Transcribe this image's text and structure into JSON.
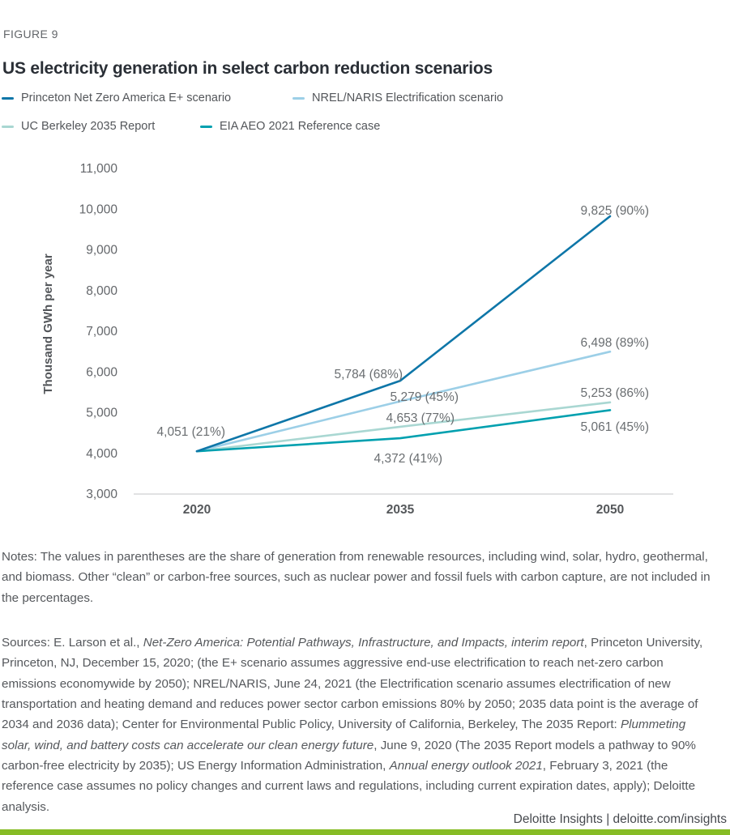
{
  "figure_label": "FIGURE 9",
  "title": "US electricity generation in select carbon reduction scenarios",
  "chart_data": {
    "type": "line",
    "x": [
      "2020",
      "2035",
      "2050"
    ],
    "xtick_labels": [
      "2020",
      "2035",
      "2050"
    ],
    "ylabel": "Thousand GWh per year",
    "ylim": [
      3000,
      11000
    ],
    "ytick_step": 1000,
    "ytick_labels": [
      "3,000",
      "4,000",
      "5,000",
      "6,000",
      "7,000",
      "8,000",
      "9,000",
      "10,000",
      "11,000"
    ],
    "grid": false,
    "legend_position": "top",
    "series": [
      {
        "name": "Princeton Net Zero America E+ scenario",
        "color": "#0E76A8",
        "values": [
          4051,
          5784,
          9825
        ],
        "point_labels": [
          "4,051 (21%)",
          "5,784 (68%)",
          "9,825 (90%)"
        ]
      },
      {
        "name": "NREL/NARIS Electrification scenario",
        "color": "#9CCFE7",
        "values": [
          4051,
          5279,
          6498
        ],
        "point_labels": [
          null,
          "5,279 (45%)",
          "6,498 (89%)"
        ]
      },
      {
        "name": "UC Berkeley 2035 Report",
        "color": "#A9D7D2",
        "values": [
          4051,
          4653,
          5253
        ],
        "point_labels": [
          null,
          "4,653 (77%)",
          "5,253 (86%)"
        ]
      },
      {
        "name": "EIA AEO 2021 Reference case",
        "color": "#00A0AF",
        "values": [
          4051,
          4372,
          5061
        ],
        "point_labels": [
          null,
          "4,372 (41%)",
          "5,061 (45%)"
        ]
      }
    ]
  },
  "notes": "Notes: The values in parentheses are the share of generation from renewable resources, including wind, solar, hydro, geothermal, and biomass. Other “clean” or carbon-free sources, such as nuclear power and fossil fuels with carbon capture, are not included in the percentages.",
  "sources_segments": [
    {
      "text": "Sources: E. Larson et al., ",
      "italic": false
    },
    {
      "text": "Net-Zero America: Potential Pathways, Infrastructure, and Impacts, interim report",
      "italic": true
    },
    {
      "text": ", Princeton University, Princeton, NJ, December 15, 2020; (the E+ scenario assumes aggressive end-use electrification to reach net-zero carbon emissions economywide by 2050); NREL/NARIS, June 24, 2021 (the Electrification scenario assumes electrification of new transportation and heating demand and reduces power sector carbon emissions 80% by 2050; 2035 data point is the average of 2034 and 2036 data); Center for Environmental Public Policy, University of California, Berkeley, The 2035 Report: ",
      "italic": false
    },
    {
      "text": "Plummeting solar, wind, and battery costs can accelerate our clean energy future",
      "italic": true
    },
    {
      "text": ", June 9, 2020 (The 2035 Report models a pathway to 90% carbon-free electricity by 2035); US Energy Information Administration, ",
      "italic": false
    },
    {
      "text": "Annual energy outlook 2021",
      "italic": true
    },
    {
      "text": ", February 3, 2021 (the reference case assumes no policy changes and current laws and regulations, including current expiration dates, apply); Deloitte analysis.",
      "italic": false
    }
  ],
  "footer": "Deloitte Insights | deloitte.com/insights",
  "colors": {
    "accent_bar": "#86BC25",
    "axis_line": "#C3C5C7"
  }
}
